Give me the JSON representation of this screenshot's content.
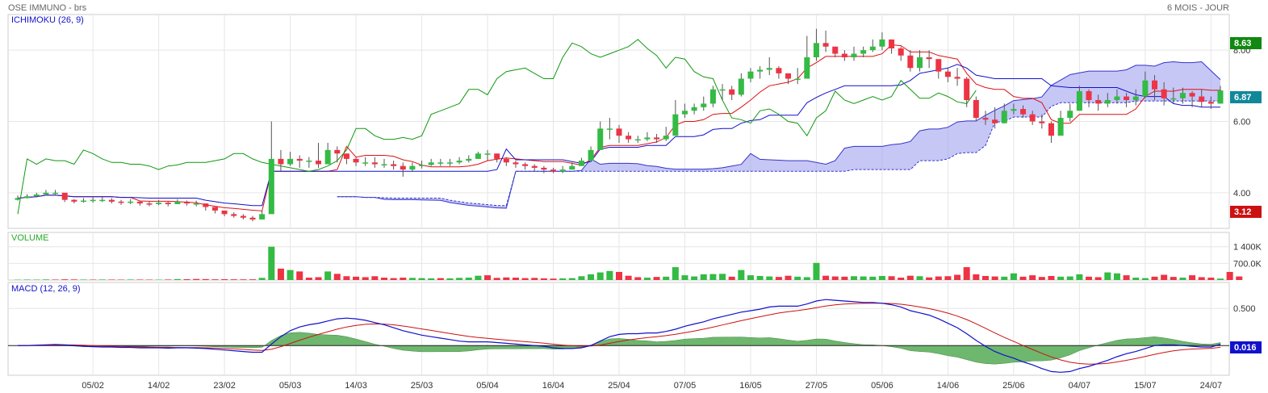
{
  "header": {
    "title": "OSE IMMUNO - brs",
    "period": "6 MOIS - JOUR"
  },
  "colors": {
    "bull": "#33bb44",
    "bear": "#ee3344",
    "tenkan": "#dd1111",
    "kijun": "#1111cc",
    "chikou": "#119911",
    "cloud": "#9999ee",
    "macd": "#1111cc",
    "signal": "#cc1111",
    "hist": "#55aa55",
    "grid": "#e6e6e6"
  },
  "chart_data": [
    {
      "type": "candlestick",
      "title": "ICHIMOKU (26, 9)",
      "ylim": [
        3.0,
        9.0
      ],
      "yticks": [
        4.0,
        6.0,
        8.0
      ],
      "ytick_labels": [
        "4.00",
        "6.00",
        "8.00"
      ],
      "xtick_labels": [
        "05/02",
        "14/02",
        "23/02",
        "05/03",
        "14/03",
        "25/03",
        "05/04",
        "16/04",
        "25/04",
        "07/05",
        "16/05",
        "27/05",
        "05/06",
        "14/06",
        "25/06",
        "04/07",
        "15/07",
        "24/07"
      ],
      "xtick_index": [
        8,
        15,
        22,
        29,
        36,
        43,
        50,
        57,
        64,
        71,
        78,
        85,
        92,
        99,
        106,
        113,
        120,
        127
      ],
      "n_sessions": 129,
      "current_price": "6.87",
      "high_marker": "8.63",
      "low_marker": "3.12",
      "close": [
        3.85,
        3.9,
        3.95,
        4.0,
        4.0,
        3.8,
        3.75,
        3.78,
        3.8,
        3.8,
        3.75,
        3.72,
        3.75,
        3.7,
        3.68,
        3.72,
        3.68,
        3.75,
        3.7,
        3.7,
        3.6,
        3.5,
        3.4,
        3.35,
        3.3,
        3.25,
        3.4,
        4.95,
        4.8,
        4.95,
        4.9,
        4.9,
        4.8,
        5.2,
        5.1,
        4.95,
        4.85,
        4.85,
        4.8,
        4.8,
        4.75,
        4.65,
        4.75,
        4.78,
        4.85,
        4.85,
        4.85,
        4.9,
        4.95,
        5.1,
        5.1,
        4.95,
        4.85,
        4.8,
        4.75,
        4.7,
        4.65,
        4.6,
        4.65,
        4.75,
        4.9,
        5.2,
        5.8,
        5.8,
        5.6,
        5.5,
        5.5,
        5.55,
        5.5,
        5.6,
        6.2,
        6.3,
        6.4,
        6.5,
        6.9,
        6.9,
        6.75,
        7.2,
        7.4,
        7.45,
        7.5,
        7.35,
        7.2,
        7.2,
        7.8,
        8.2,
        8.1,
        7.9,
        7.8,
        7.9,
        8.0,
        8.1,
        8.3,
        8.05,
        7.85,
        7.5,
        7.8,
        7.75,
        7.4,
        7.25,
        7.2,
        6.6,
        6.1,
        6.05,
        5.95,
        6.3,
        6.35,
        6.2,
        6.0,
        5.95,
        5.6,
        6.1,
        6.3,
        6.85,
        6.6,
        6.5,
        6.6,
        6.7,
        6.6,
        6.7,
        7.15,
        6.9,
        6.65,
        6.65,
        6.8,
        6.7,
        6.55,
        6.5,
        6.87
      ],
      "high": [
        3.92,
        3.96,
        4.0,
        4.08,
        4.08,
        3.9,
        3.82,
        3.85,
        3.9,
        3.88,
        3.85,
        3.8,
        3.82,
        3.78,
        3.75,
        3.8,
        3.75,
        3.82,
        3.78,
        3.78,
        3.7,
        3.58,
        3.5,
        3.45,
        3.4,
        3.35,
        3.5,
        6.0,
        5.2,
        5.15,
        5.05,
        5.0,
        5.4,
        5.4,
        5.3,
        5.1,
        5.0,
        5.0,
        5.0,
        4.95,
        4.9,
        4.85,
        4.85,
        4.9,
        4.95,
        4.95,
        4.95,
        5.0,
        5.05,
        5.15,
        5.2,
        5.1,
        5.0,
        4.9,
        4.85,
        4.8,
        4.75,
        4.7,
        4.75,
        4.85,
        4.98,
        5.3,
        6.0,
        6.1,
        5.9,
        5.7,
        5.6,
        5.7,
        5.65,
        5.85,
        6.6,
        6.5,
        6.5,
        6.7,
        7.0,
        7.05,
        7.0,
        7.35,
        7.5,
        7.55,
        7.8,
        7.55,
        7.35,
        7.5,
        8.4,
        8.6,
        8.55,
        8.1,
        8.0,
        8.1,
        8.1,
        8.3,
        8.5,
        8.3,
        8.1,
        8.0,
        8.0,
        8.0,
        7.6,
        7.5,
        7.5,
        7.25,
        6.7,
        6.3,
        6.4,
        6.5,
        6.5,
        6.45,
        6.3,
        6.2,
        6.0,
        6.3,
        6.5,
        7.0,
        6.9,
        6.75,
        6.8,
        6.9,
        6.8,
        6.9,
        7.4,
        7.3,
        7.1,
        6.95,
        6.95,
        6.85,
        6.9,
        6.7,
        7.0
      ],
      "low": [
        3.78,
        3.84,
        3.9,
        3.95,
        3.95,
        3.74,
        3.7,
        3.72,
        3.72,
        3.74,
        3.7,
        3.66,
        3.68,
        3.64,
        3.62,
        3.65,
        3.62,
        3.68,
        3.64,
        3.62,
        3.5,
        3.42,
        3.34,
        3.3,
        3.25,
        3.2,
        3.3,
        4.6,
        4.6,
        4.75,
        4.7,
        4.7,
        4.7,
        4.9,
        4.85,
        4.8,
        4.75,
        4.75,
        4.7,
        4.7,
        4.65,
        4.45,
        4.6,
        4.68,
        4.75,
        4.75,
        4.75,
        4.8,
        4.85,
        4.95,
        4.9,
        4.85,
        4.75,
        4.7,
        4.65,
        4.6,
        4.55,
        4.55,
        4.55,
        4.65,
        4.75,
        5.0,
        5.2,
        5.5,
        5.4,
        5.4,
        5.4,
        5.45,
        5.4,
        5.45,
        5.7,
        6.1,
        6.2,
        6.3,
        6.4,
        6.6,
        6.6,
        6.7,
        7.1,
        7.2,
        7.3,
        7.2,
        7.05,
        7.05,
        7.2,
        7.7,
        7.95,
        7.8,
        7.7,
        7.7,
        7.8,
        7.95,
        8.0,
        7.9,
        7.7,
        7.4,
        7.4,
        7.5,
        7.2,
        7.1,
        7.0,
        6.4,
        6.0,
        5.9,
        5.8,
        5.95,
        6.2,
        6.1,
        5.9,
        5.8,
        5.4,
        5.7,
        6.0,
        6.3,
        6.4,
        6.3,
        6.4,
        6.5,
        6.4,
        6.45,
        6.65,
        6.6,
        6.45,
        6.5,
        6.5,
        6.4,
        6.4,
        6.35,
        6.55
      ]
    },
    {
      "type": "bar",
      "title": "VOLUME",
      "ylim": [
        0,
        2000000
      ],
      "yticks": [
        700000,
        1400000
      ],
      "ytick_labels": [
        "700.0K",
        "1 400K"
      ],
      "values": [
        15000,
        20000,
        18000,
        25000,
        20000,
        30000,
        25000,
        20000,
        18000,
        22000,
        20000,
        18000,
        22000,
        20000,
        18000,
        16000,
        22000,
        40000,
        35000,
        45000,
        40000,
        30000,
        35000,
        30000,
        28000,
        30000,
        90000,
        1400000,
        480000,
        420000,
        360000,
        100000,
        120000,
        360000,
        260000,
        160000,
        140000,
        120000,
        160000,
        100000,
        80000,
        100000,
        90000,
        80000,
        70000,
        80000,
        70000,
        90000,
        100000,
        180000,
        200000,
        90000,
        110000,
        100000,
        80000,
        90000,
        70000,
        60000,
        70000,
        80000,
        160000,
        240000,
        320000,
        380000,
        340000,
        180000,
        120000,
        100000,
        130000,
        140000,
        540000,
        200000,
        150000,
        240000,
        250000,
        260000,
        140000,
        420000,
        200000,
        170000,
        150000,
        130000,
        180000,
        140000,
        120000,
        720000,
        180000,
        150000,
        140000,
        160000,
        150000,
        140000,
        170000,
        160000,
        100000,
        180000,
        160000,
        110000,
        150000,
        160000,
        220000,
        540000,
        240000,
        170000,
        150000,
        140000,
        280000,
        140000,
        200000,
        130000,
        170000,
        140000,
        150000,
        240000,
        140000,
        120000,
        320000,
        280000,
        200000,
        100000,
        80000,
        140000,
        220000,
        130000,
        100000,
        200000,
        120000,
        100000,
        60000,
        340000,
        150000
      ],
      "up": [
        1,
        1,
        1,
        1,
        0,
        0,
        0,
        1,
        0,
        1,
        0,
        0,
        1,
        0,
        0,
        1,
        0,
        1,
        0,
        0,
        0,
        0,
        0,
        0,
        0,
        0,
        1,
        1,
        0,
        1,
        0,
        0,
        0,
        1,
        0,
        0,
        0,
        0,
        0,
        0,
        0,
        0,
        1,
        1,
        1,
        0,
        1,
        1,
        1,
        1,
        0,
        0,
        0,
        0,
        0,
        0,
        0,
        0,
        1,
        1,
        1,
        1,
        1,
        1,
        0,
        0,
        0,
        1,
        0,
        1,
        1,
        1,
        1,
        1,
        1,
        1,
        0,
        1,
        1,
        1,
        1,
        0,
        0,
        1,
        1,
        1,
        0,
        0,
        0,
        1,
        1,
        1,
        1,
        0,
        0,
        0,
        1,
        0,
        0,
        0,
        0,
        0,
        0,
        0,
        0,
        1,
        1,
        0,
        0,
        0,
        0,
        1,
        1,
        1,
        0,
        0,
        1,
        1,
        0,
        1,
        1,
        0,
        0,
        0,
        1,
        0,
        0,
        0,
        1
      ],
      "note_up": "1 = session close >= open (green), 0 = red"
    },
    {
      "type": "line",
      "title": "MACD (12, 26, 9)",
      "ylim": [
        -0.4,
        0.85
      ],
      "yticks": [
        0.5
      ],
      "ytick_labels": [
        "0.500"
      ],
      "current_value": "0.016",
      "series": [
        {
          "name": "MACD",
          "values": [
            0.0,
            0.0,
            0.005,
            0.01,
            0.015,
            0.01,
            0.0,
            -0.01,
            -0.015,
            -0.02,
            -0.02,
            -0.025,
            -0.025,
            -0.03,
            -0.03,
            -0.03,
            -0.035,
            -0.03,
            -0.03,
            -0.035,
            -0.04,
            -0.05,
            -0.06,
            -0.07,
            -0.08,
            -0.09,
            -0.09,
            0.02,
            0.12,
            0.2,
            0.25,
            0.28,
            0.3,
            0.33,
            0.36,
            0.37,
            0.36,
            0.34,
            0.31,
            0.28,
            0.24,
            0.2,
            0.17,
            0.14,
            0.12,
            0.1,
            0.08,
            0.06,
            0.05,
            0.05,
            0.05,
            0.04,
            0.03,
            0.02,
            0.01,
            0.0,
            -0.01,
            -0.03,
            -0.04,
            -0.04,
            -0.03,
            0.0,
            0.06,
            0.12,
            0.15,
            0.16,
            0.16,
            0.17,
            0.17,
            0.19,
            0.22,
            0.26,
            0.29,
            0.32,
            0.36,
            0.39,
            0.42,
            0.45,
            0.47,
            0.49,
            0.52,
            0.53,
            0.53,
            0.53,
            0.56,
            0.6,
            0.62,
            0.61,
            0.6,
            0.59,
            0.58,
            0.58,
            0.57,
            0.55,
            0.52,
            0.47,
            0.44,
            0.41,
            0.36,
            0.3,
            0.24,
            0.16,
            0.07,
            -0.01,
            -0.08,
            -0.13,
            -0.17,
            -0.22,
            -0.26,
            -0.31,
            -0.35,
            -0.36,
            -0.35,
            -0.31,
            -0.28,
            -0.24,
            -0.2,
            -0.15,
            -0.11,
            -0.08,
            -0.04,
            0.0,
            0.01,
            0.01,
            0.0,
            -0.01,
            -0.02,
            -0.02,
            0.016
          ]
        },
        {
          "name": "Signal",
          "values": [
            0.0,
            0.0,
            0.002,
            0.005,
            0.008,
            0.009,
            0.008,
            0.005,
            0.0,
            -0.005,
            -0.008,
            -0.012,
            -0.015,
            -0.018,
            -0.021,
            -0.023,
            -0.025,
            -0.026,
            -0.027,
            -0.028,
            -0.03,
            -0.034,
            -0.039,
            -0.045,
            -0.052,
            -0.06,
            -0.066,
            -0.049,
            -0.015,
            0.028,
            0.072,
            0.113,
            0.15,
            0.186,
            0.221,
            0.25,
            0.272,
            0.286,
            0.291,
            0.289,
            0.279,
            0.263,
            0.245,
            0.224,
            0.204,
            0.183,
            0.162,
            0.142,
            0.123,
            0.108,
            0.097,
            0.085,
            0.074,
            0.063,
            0.052,
            0.042,
            0.031,
            0.019,
            0.007,
            -0.002,
            -0.008,
            -0.006,
            0.007,
            0.03,
            0.054,
            0.075,
            0.092,
            0.107,
            0.12,
            0.134,
            0.151,
            0.173,
            0.196,
            0.221,
            0.248,
            0.277,
            0.306,
            0.335,
            0.362,
            0.388,
            0.414,
            0.438,
            0.456,
            0.471,
            0.489,
            0.511,
            0.533,
            0.548,
            0.559,
            0.565,
            0.568,
            0.57,
            0.57,
            0.566,
            0.557,
            0.54,
            0.52,
            0.498,
            0.47,
            0.437,
            0.397,
            0.35,
            0.294,
            0.233,
            0.17,
            0.11,
            0.055,
            0.0,
            -0.052,
            -0.104,
            -0.153,
            -0.194,
            -0.225,
            -0.242,
            -0.25,
            -0.248,
            -0.239,
            -0.221,
            -0.199,
            -0.175,
            -0.148,
            -0.118,
            -0.093,
            -0.072,
            -0.057,
            -0.047,
            -0.042,
            -0.037,
            -0.024
          ]
        },
        {
          "name": "Histogram",
          "values": [
            0.0,
            0.0,
            0.003,
            0.005,
            0.007,
            0.001,
            -0.008,
            -0.015,
            -0.015,
            -0.015,
            -0.012,
            -0.013,
            -0.01,
            -0.012,
            -0.009,
            -0.007,
            -0.01,
            -0.004,
            -0.003,
            -0.007,
            -0.01,
            -0.016,
            -0.021,
            -0.025,
            -0.028,
            -0.03,
            -0.024,
            0.069,
            0.135,
            0.172,
            0.178,
            0.167,
            0.15,
            0.144,
            0.139,
            0.12,
            0.088,
            0.054,
            0.019,
            -0.009,
            -0.039,
            -0.063,
            -0.075,
            -0.084,
            -0.084,
            -0.083,
            -0.082,
            -0.082,
            -0.073,
            -0.058,
            -0.047,
            -0.045,
            -0.044,
            -0.043,
            -0.042,
            -0.042,
            -0.041,
            -0.049,
            -0.047,
            -0.038,
            -0.022,
            0.006,
            0.053,
            0.09,
            0.096,
            0.085,
            0.068,
            0.063,
            0.05,
            0.056,
            0.069,
            0.087,
            0.094,
            0.099,
            0.112,
            0.113,
            0.114,
            0.115,
            0.108,
            0.102,
            0.106,
            0.092,
            0.074,
            0.059,
            0.071,
            0.089,
            0.087,
            0.062,
            0.041,
            0.025,
            0.012,
            0.01,
            0.0,
            -0.016,
            -0.037,
            -0.07,
            -0.08,
            -0.088,
            -0.11,
            -0.137,
            -0.157,
            -0.19,
            -0.224,
            -0.243,
            -0.25,
            -0.24,
            -0.225,
            -0.22,
            -0.208,
            -0.206,
            -0.197,
            -0.166,
            -0.125,
            -0.068,
            -0.03,
            0.008,
            0.039,
            0.071,
            0.089,
            0.095,
            0.108,
            0.118,
            0.103,
            0.082,
            0.057,
            0.037,
            0.022,
            0.017,
            0.04
          ]
        }
      ]
    }
  ]
}
